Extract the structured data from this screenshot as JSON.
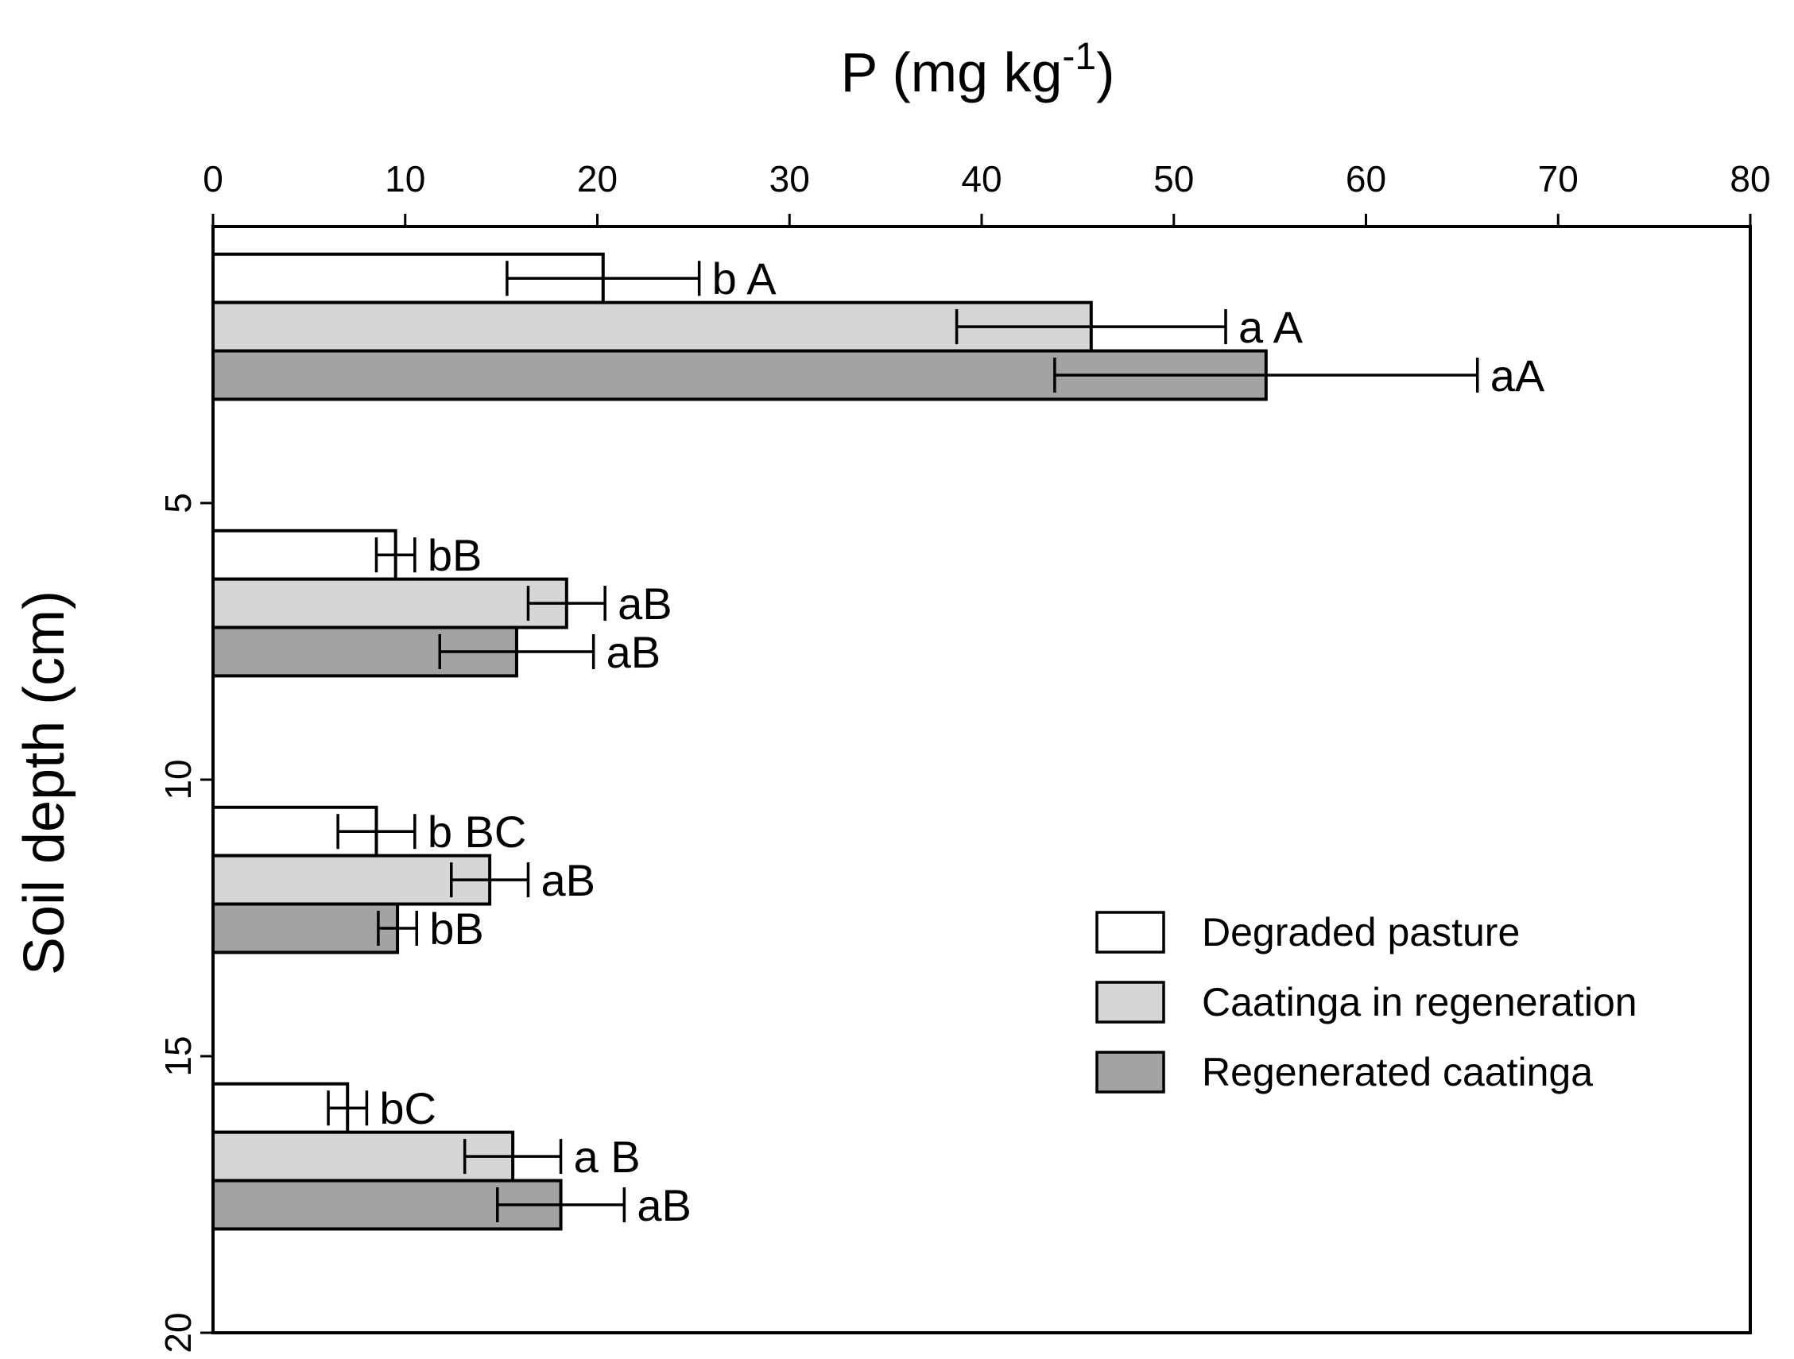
{
  "chart_data": {
    "type": "bar",
    "orientation": "horizontal",
    "xlabel": {
      "main": "P  (mg kg",
      "sup": "-1",
      "close": ")"
    },
    "ylabel": "Soil depth (cm)",
    "xlim": [
      0,
      80
    ],
    "xticks": [
      "0",
      "10",
      "20",
      "30",
      "40",
      "50",
      "60",
      "70",
      "80"
    ],
    "ylim": [
      0,
      20
    ],
    "yticks": [
      "5",
      "10",
      "15",
      "20"
    ],
    "grid": false,
    "legend_position": "right",
    "categories": [
      "0-5",
      "5-10",
      "10-15",
      "15-20"
    ],
    "series": [
      {
        "name": "Degraded pasture",
        "color": "#ffffff",
        "values": [
          20.3,
          9.5,
          8.5,
          7.0
        ],
        "error": [
          5.0,
          1.0,
          2.0,
          1.0
        ],
        "labels": [
          "b A",
          "bB",
          "b BC",
          "bC"
        ]
      },
      {
        "name": "Caatinga in regeneration",
        "color": "#d6d6d6",
        "values": [
          45.7,
          18.4,
          14.4,
          15.6
        ],
        "error": [
          7.0,
          2.0,
          2.0,
          2.5
        ],
        "labels": [
          "a A",
          "aB",
          "aB",
          "a B"
        ]
      },
      {
        "name": "Regenerated caatinga",
        "color": "#a3a3a3",
        "values": [
          54.8,
          15.8,
          9.6,
          18.1
        ],
        "error": [
          11.0,
          4.0,
          1.0,
          3.3
        ],
        "labels": [
          "aA",
          "aB",
          "bB",
          "aB"
        ]
      }
    ]
  }
}
